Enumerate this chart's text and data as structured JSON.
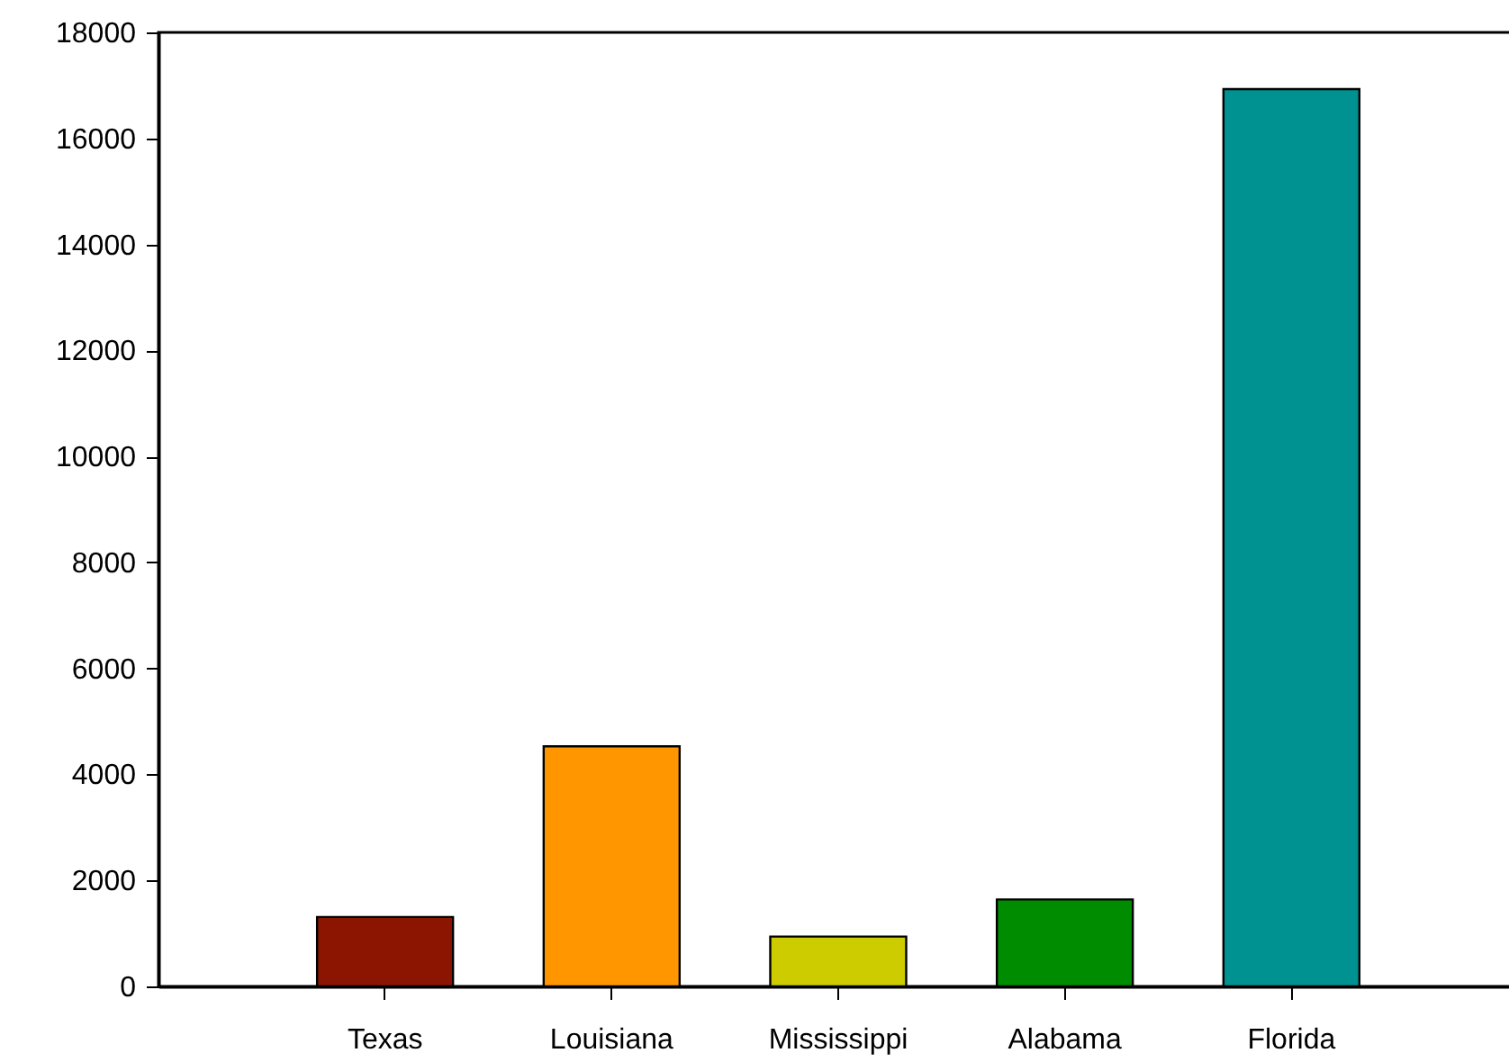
{
  "chart_data": {
    "type": "bar",
    "categories": [
      "Texas",
      "Louisiana",
      "Mississippi",
      "Alabama",
      "Florida"
    ],
    "values": [
      1310,
      4530,
      940,
      1640,
      16930
    ],
    "colors": [
      "#8b1500",
      "#ff9600",
      "#cccc00",
      "#008c00",
      "#009191"
    ],
    "ylim": [
      0,
      18000
    ],
    "yticks": [
      0,
      2000,
      4000,
      6000,
      8000,
      10000,
      12000,
      14000,
      16000,
      18000
    ],
    "grid": false
  }
}
